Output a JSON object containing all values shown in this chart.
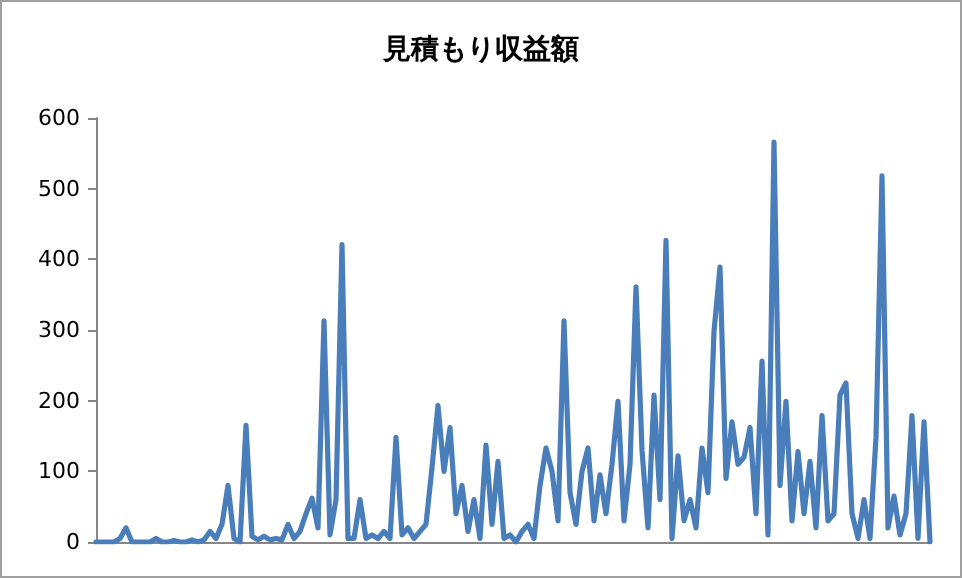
{
  "chart_data": {
    "type": "line",
    "title": "見積もり収益額",
    "categories": [
      null,
      null,
      null,
      null,
      null,
      null,
      null,
      null,
      null,
      null,
      null,
      null,
      null,
      null,
      null,
      null,
      null,
      null,
      null,
      null,
      null,
      null,
      null,
      null,
      null,
      null,
      null,
      null,
      null,
      null,
      null,
      null,
      null,
      null,
      null,
      null,
      null,
      null,
      null,
      null,
      null,
      null,
      null,
      null,
      null,
      null,
      null,
      null,
      null,
      null,
      null,
      null,
      null,
      null,
      null,
      null,
      null,
      null,
      null,
      null,
      null,
      null,
      null,
      null,
      null,
      null,
      null,
      null,
      null,
      null,
      null,
      null,
      null,
      null,
      null,
      null,
      null,
      null,
      null,
      null,
      null,
      null,
      null,
      null,
      null,
      null,
      null,
      null,
      null,
      null,
      null,
      null,
      null,
      null,
      null,
      null,
      null,
      null,
      null,
      null,
      null,
      null,
      null,
      null,
      null,
      null,
      null,
      null,
      null,
      null,
      null,
      null,
      null,
      null,
      null,
      null,
      null,
      null,
      null,
      null,
      null,
      null,
      null,
      null,
      null,
      null,
      null,
      null,
      null,
      null,
      null,
      null,
      null,
      null,
      null,
      null,
      null,
      null,
      null,
      null
    ],
    "series": [
      {
        "color": "#4a7ebb",
        "values": [
          0,
          0,
          0,
          0,
          5,
          20,
          0,
          0,
          0,
          0,
          5,
          0,
          0,
          2,
          0,
          0,
          3,
          0,
          3,
          15,
          5,
          25,
          80,
          5,
          0,
          165,
          8,
          3,
          8,
          3,
          5,
          3,
          25,
          5,
          15,
          40,
          62,
          20,
          313,
          10,
          60,
          421,
          5,
          5,
          60,
          5,
          10,
          5,
          15,
          5,
          148,
          10,
          20,
          5,
          15,
          25,
          105,
          193,
          100,
          162,
          40,
          80,
          15,
          60,
          5,
          137,
          25,
          114,
          5,
          10,
          0,
          15,
          25,
          5,
          80,
          133,
          100,
          30,
          313,
          70,
          25,
          100,
          133,
          30,
          95,
          40,
          110,
          199,
          30,
          110,
          361,
          130,
          20,
          208,
          60,
          427,
          5,
          122,
          30,
          60,
          20,
          133,
          70,
          298,
          389,
          90,
          170,
          110,
          120,
          162,
          40,
          256,
          10,
          566,
          80,
          199,
          30,
          128,
          40,
          114,
          20,
          179,
          30,
          40,
          208,
          225,
          40,
          5,
          60,
          5,
          148,
          518,
          20,
          65,
          10,
          40,
          179,
          5,
          170,
          0
        ]
      }
    ],
    "ylim": [
      0,
      600
    ],
    "yticks": [
      0,
      100,
      200,
      300,
      400,
      500,
      600
    ],
    "marker": "none",
    "line_style": "solid"
  }
}
